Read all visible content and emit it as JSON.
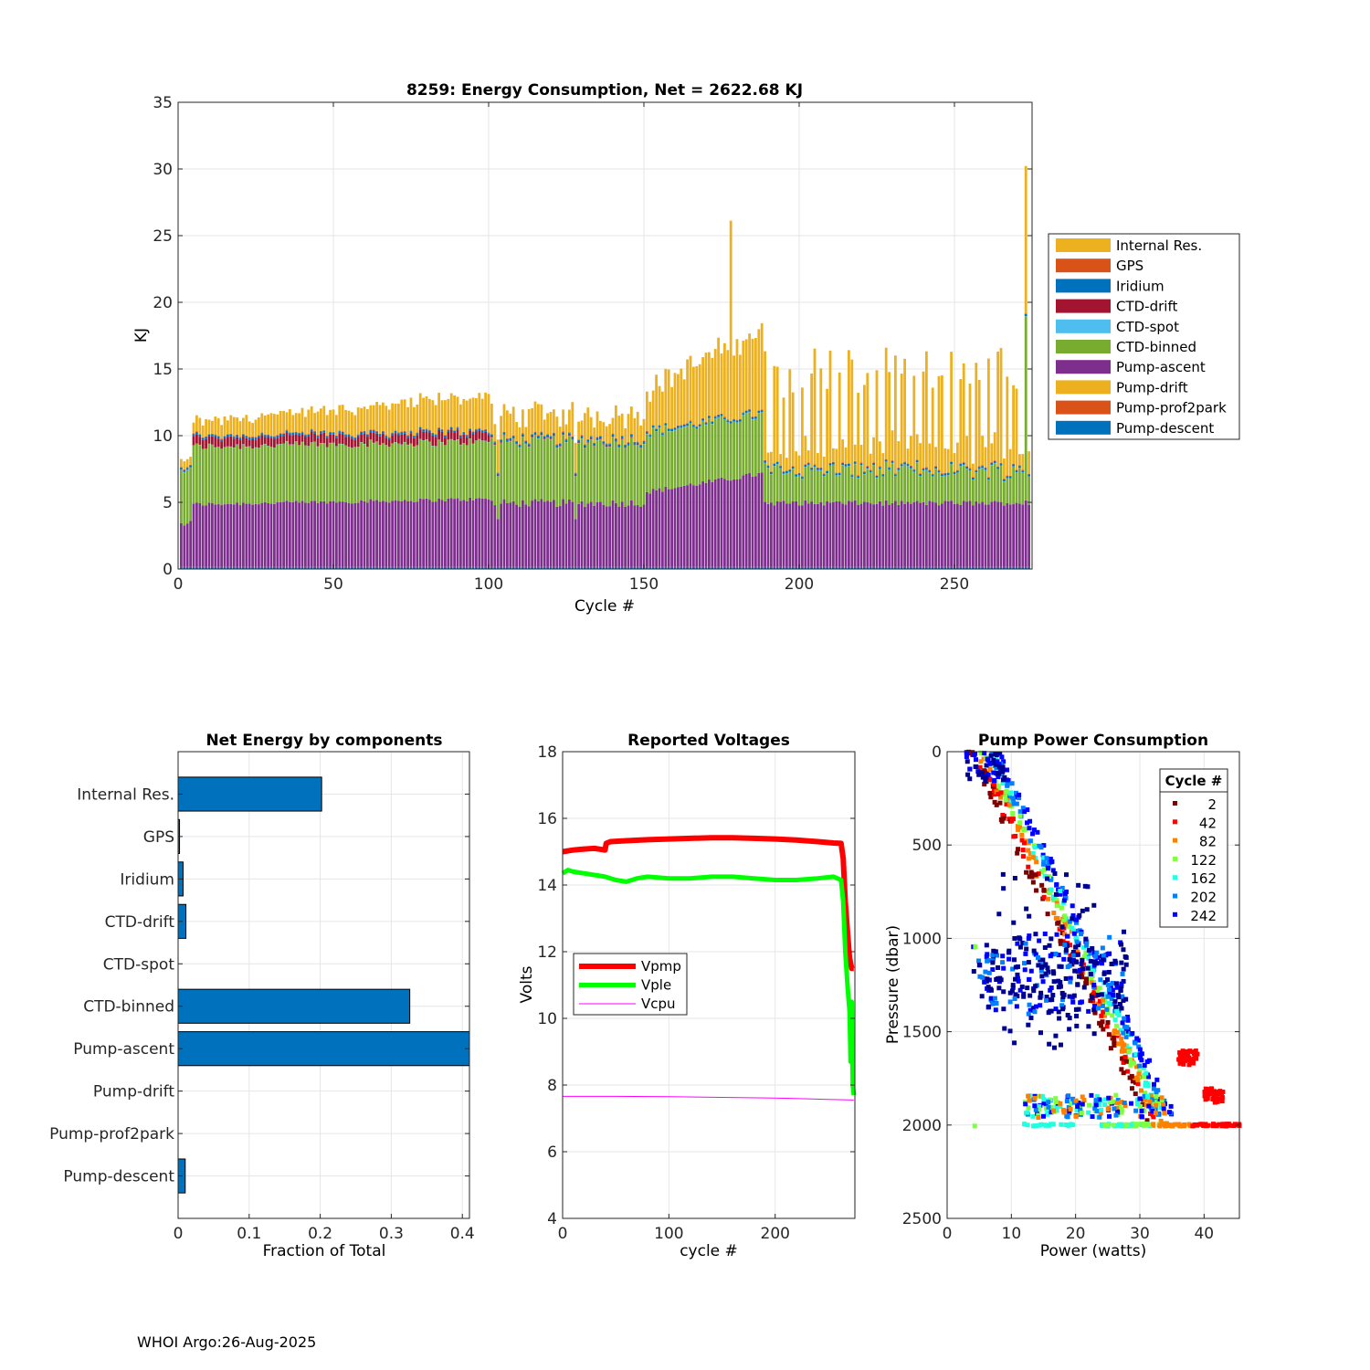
{
  "footer": "WHOI Argo:26-Aug-2025",
  "chart_data": [
    {
      "type": "stacked-bar",
      "title": "8259: Energy Consumption,  Net = 2622.68 KJ",
      "xlabel": "Cycle #",
      "ylabel": "KJ",
      "xlim": [
        0,
        275
      ],
      "ylim": [
        0,
        35
      ],
      "xticks": [
        0,
        50,
        100,
        150,
        200,
        250
      ],
      "yticks": [
        0,
        5,
        10,
        15,
        20,
        25,
        30,
        35
      ],
      "grid": true,
      "legend_position": "outside-right",
      "legend": [
        {
          "name": "Internal Res.",
          "color": "#EDB120"
        },
        {
          "name": "GPS",
          "color": "#D95319"
        },
        {
          "name": "Iridium",
          "color": "#0072BD"
        },
        {
          "name": "CTD-drift",
          "color": "#A2142F"
        },
        {
          "name": "CTD-spot",
          "color": "#4DBEEE"
        },
        {
          "name": "CTD-binned",
          "color": "#77AC30"
        },
        {
          "name": "Pump-ascent",
          "color": "#7E2F8E"
        },
        {
          "name": "Pump-drift",
          "color": "#EDB120"
        },
        {
          "name": "Pump-prof2park",
          "color": "#D95319"
        },
        {
          "name": "Pump-descent",
          "color": "#0072BD"
        }
      ],
      "cycles": "1-274",
      "series_description": "Per-cycle stacked totals approx: cycles 1-4 ~8.1 KJ; cycles 5-100 rising from ~10.2 to ~12 KJ (pump-ascent ~4.8-5.2, CTD-binned ~4.3, CTD-drift ~0.6, internal ~0.7); cycles 100-150 ~11 KJ; cycles 150-188 ~14-17.5 KJ; cycle 178 spike 26.1 KJ; cycles 189-270 alternating ~8.5-15.5 KJ; cycle 273 spike 30.2 KJ",
      "spikes": [
        {
          "cycle": 178,
          "total": 26.1
        },
        {
          "cycle": 273,
          "total": 30.2
        }
      ]
    },
    {
      "type": "barh",
      "title": "Net Energy by components",
      "xlabel": "Fraction of Total",
      "xlim": [
        0,
        0.41
      ],
      "xticks": [
        0,
        0.1,
        0.2,
        0.3,
        0.4
      ],
      "categories": [
        "Internal Res.",
        "GPS",
        "Iridium",
        "CTD-drift",
        "CTD-spot",
        "CTD-binned",
        "Pump-ascent",
        "Pump-drift",
        "Pump-prof2park",
        "Pump-descent"
      ],
      "values": [
        0.202,
        0.002,
        0.007,
        0.011,
        0.0,
        0.326,
        0.415,
        0.0,
        0.0,
        0.01
      ],
      "bar_color": "#0072BD"
    },
    {
      "type": "line",
      "title": "Reported Voltages",
      "xlabel": "cycle #",
      "ylabel": "Volts",
      "xlim": [
        0,
        275
      ],
      "ylim": [
        4,
        18
      ],
      "xticks": [
        0,
        100,
        200
      ],
      "yticks": [
        4,
        6,
        8,
        10,
        12,
        14,
        16,
        18
      ],
      "series": [
        {
          "name": "Vpmp",
          "color": "#FF0000",
          "x": [
            0,
            10,
            20,
            30,
            40,
            41,
            45,
            60,
            80,
            100,
            120,
            140,
            160,
            180,
            200,
            220,
            240,
            255,
            262,
            264,
            266,
            268,
            270,
            272,
            274
          ],
          "y": [
            15.0,
            15.05,
            15.08,
            15.1,
            15.05,
            15.25,
            15.3,
            15.33,
            15.36,
            15.38,
            15.4,
            15.42,
            15.42,
            15.4,
            15.38,
            15.35,
            15.3,
            15.26,
            15.25,
            14.8,
            13.5,
            12.6,
            11.8,
            11.5,
            11.5
          ]
        },
        {
          "name": "Vple",
          "color": "#00FF00",
          "x": [
            0,
            5,
            10,
            20,
            30,
            40,
            50,
            60,
            70,
            80,
            100,
            120,
            140,
            160,
            180,
            200,
            220,
            240,
            255,
            262,
            264,
            266,
            268,
            269,
            270,
            271,
            272,
            273,
            274
          ],
          "y": [
            14.35,
            14.45,
            14.4,
            14.35,
            14.3,
            14.25,
            14.15,
            14.1,
            14.2,
            14.25,
            14.2,
            14.2,
            14.25,
            14.25,
            14.2,
            14.15,
            14.15,
            14.2,
            14.25,
            14.15,
            13.5,
            12.0,
            11.0,
            10.6,
            10.2,
            8.7,
            10.5,
            8.0,
            7.7
          ]
        },
        {
          "name": "Vcpu",
          "color": "#FF00FF",
          "x": [
            0,
            50,
            100,
            150,
            200,
            250,
            274
          ],
          "y": [
            7.66,
            7.66,
            7.65,
            7.63,
            7.61,
            7.57,
            7.55
          ]
        }
      ]
    },
    {
      "type": "scatter",
      "title": "Pump Power Consumption",
      "xlabel": "Power (watts)",
      "ylabel": "Pressure (dbar)",
      "xlim": [
        0,
        45.5
      ],
      "ylim": [
        0,
        2500
      ],
      "y_reversed": true,
      "xticks": [
        0,
        10,
        20,
        30,
        40
      ],
      "yticks": [
        0,
        500,
        1000,
        1500,
        2000,
        2500
      ],
      "legend_title": "Cycle #",
      "legend": [
        {
          "label": "2",
          "color": "#7F0000"
        },
        {
          "label": "42",
          "color": "#FF0000"
        },
        {
          "label": "82",
          "color": "#FF8000"
        },
        {
          "label": "122",
          "color": "#7FFF40"
        },
        {
          "label": "162",
          "color": "#20FFE0"
        },
        {
          "label": "202",
          "color": "#0080FF"
        },
        {
          "label": "242",
          "color": "#0000FF"
        }
      ]
    }
  ]
}
